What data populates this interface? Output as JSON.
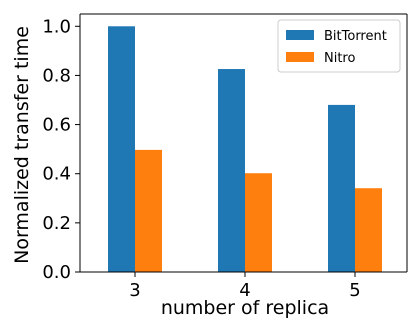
{
  "chart_data": {
    "type": "bar",
    "categories": [
      "3",
      "4",
      "5"
    ],
    "series": [
      {
        "name": "BitTorrent",
        "values": [
          1.0,
          0.826,
          0.68
        ],
        "color": "#1f77b4"
      },
      {
        "name": "Nitro",
        "values": [
          0.497,
          0.402,
          0.341
        ],
        "color": "#ff7f0e"
      }
    ],
    "xlabel": "number of replica",
    "ylabel": "Normalized transfer time",
    "ylim": [
      0,
      1.05
    ],
    "yticks": [
      "0.0",
      "0.2",
      "0.4",
      "0.6",
      "0.8",
      "1.0"
    ],
    "grid": false,
    "legend_position": "top-right"
  }
}
